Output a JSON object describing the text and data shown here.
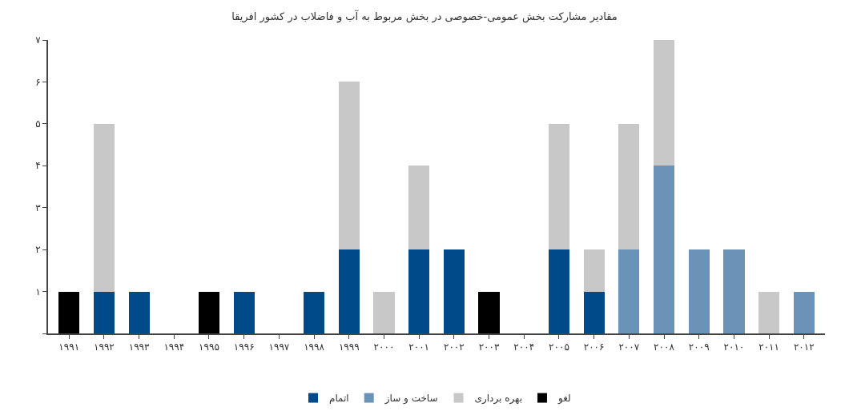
{
  "chart_data": {
    "type": "bar",
    "stacked": true,
    "title": "مقادیر مشارکت بخش عمومی-خصوصی در بخش مربوط به آب و فاضلاب در کشور افریقا",
    "categories": [
      "۱۹۹۱",
      "۱۹۹۲",
      "۱۹۹۳",
      "۱۹۹۴",
      "۱۹۹۵",
      "۱۹۹۶",
      "۱۹۹۷",
      "۱۹۹۸",
      "۱۹۹۹",
      "۲۰۰۰",
      "۲۰۰۱",
      "۲۰۰۲",
      "۲۰۰۳",
      "۲۰۰۴",
      "۲۰۰۵",
      "۲۰۰۶",
      "۲۰۰۷",
      "۲۰۰۸",
      "۲۰۰۹",
      "۲۰۱۰",
      "۲۰۱۱",
      "۲۰۱۲"
    ],
    "series": [
      {
        "name": "اتمام",
        "color": "#004a8a",
        "values": [
          0,
          1,
          1,
          0,
          0,
          1,
          0,
          1,
          2,
          0,
          2,
          2,
          0,
          0,
          2,
          1,
          0,
          0,
          0,
          0,
          0,
          0
        ]
      },
      {
        "name": "ساخت و ساز",
        "color": "#6b93b8",
        "values": [
          0,
          0,
          0,
          0,
          0,
          0,
          0,
          0,
          0,
          0,
          0,
          0,
          0,
          0,
          0,
          0,
          2,
          4,
          2,
          2,
          0,
          1
        ]
      },
      {
        "name": "بهره برداری",
        "color": "#c8c8c8",
        "values": [
          0,
          4,
          0,
          0,
          0,
          0,
          0,
          0,
          4,
          1,
          2,
          0,
          0,
          0,
          3,
          1,
          3,
          3,
          0,
          0,
          1,
          0
        ]
      },
      {
        "name": "لغو",
        "color": "#000000",
        "values": [
          1,
          0,
          0,
          0,
          1,
          0,
          0,
          0,
          0,
          0,
          0,
          0,
          1,
          0,
          0,
          0,
          0,
          0,
          0,
          0,
          0,
          0
        ]
      }
    ],
    "ylim": [
      0,
      7
    ],
    "yticks": [
      {
        "value": 0,
        "label": null
      },
      {
        "value": 1,
        "label": "۱"
      },
      {
        "value": 2,
        "label": "۲"
      },
      {
        "value": 3,
        "label": "۳"
      },
      {
        "value": 4,
        "label": "۴"
      },
      {
        "value": 5,
        "label": "۵"
      },
      {
        "value": 6,
        "label": "۶"
      },
      {
        "value": 7,
        "label": "۷"
      }
    ],
    "grid": false,
    "legend": "bottom"
  }
}
